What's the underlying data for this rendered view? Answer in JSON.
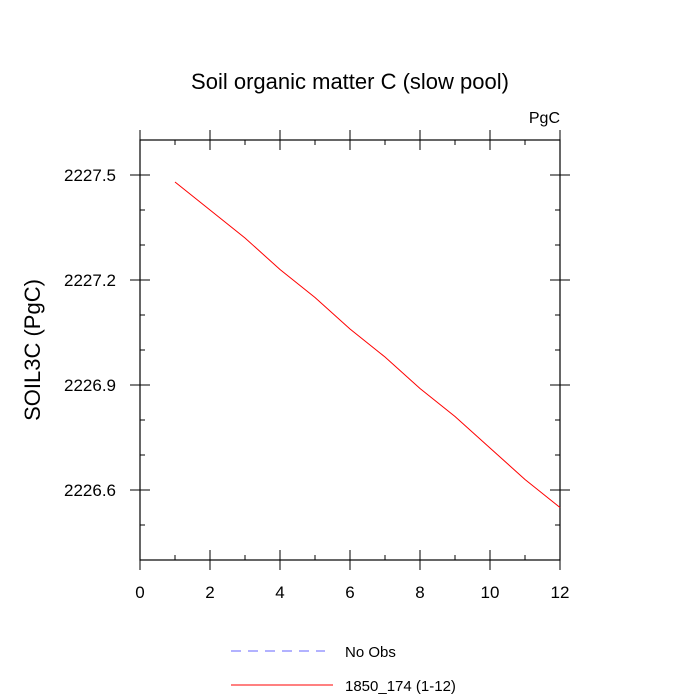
{
  "chart_data": {
    "type": "line",
    "title": "Soil organic matter C (slow pool)",
    "units_label": "PgC",
    "ylabel": "SOIL3C  (PgC)",
    "xlabel": "",
    "xlim": [
      0,
      12
    ],
    "ylim": [
      2226.4,
      2227.6
    ],
    "x_ticks": [
      "0",
      "2",
      "4",
      "6",
      "8",
      "10",
      "12"
    ],
    "y_ticks": [
      "2226.6",
      "2226.9",
      "2227.2",
      "2227.5"
    ],
    "grid": false,
    "legend_position": "bottom",
    "series": [
      {
        "name": "No Obs",
        "color": "#6666ff",
        "dash": "dashed",
        "x": [],
        "y": []
      },
      {
        "name": "1850_174 (1-12)",
        "color": "#ff0000",
        "dash": "solid",
        "x": [
          1,
          2,
          3,
          4,
          5,
          6,
          7,
          8,
          9,
          10,
          11,
          12
        ],
        "y": [
          2227.48,
          2227.4,
          2227.32,
          2227.23,
          2227.15,
          2227.06,
          2226.98,
          2226.89,
          2226.81,
          2226.72,
          2226.63,
          2226.55
        ]
      }
    ]
  }
}
